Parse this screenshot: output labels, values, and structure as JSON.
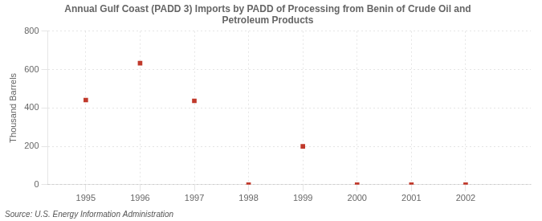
{
  "chart_data": {
    "type": "scatter",
    "title": "Annual Gulf Coast (PADD 3) Imports by PADD of Processing from Benin of Crude Oil and\nPetroleum Products",
    "ylabel": "Thousand Barrels",
    "annotations": [
      "Source: U.S. Energy Information Administration"
    ],
    "x": [
      1995,
      1996,
      1997,
      1998,
      1999,
      2000,
      2001,
      2002
    ],
    "values": [
      441,
      633,
      437,
      0,
      200,
      0,
      0,
      0
    ],
    "color": "#c0392b",
    "marker": "square",
    "xlim": [
      1994.3,
      2003.2
    ],
    "ylim": [
      0,
      800
    ],
    "xticks": [
      1995,
      1996,
      1997,
      1998,
      1999,
      2000,
      2001,
      2002
    ],
    "yticks": [
      0,
      200,
      400,
      600,
      800
    ],
    "grid": true
  }
}
